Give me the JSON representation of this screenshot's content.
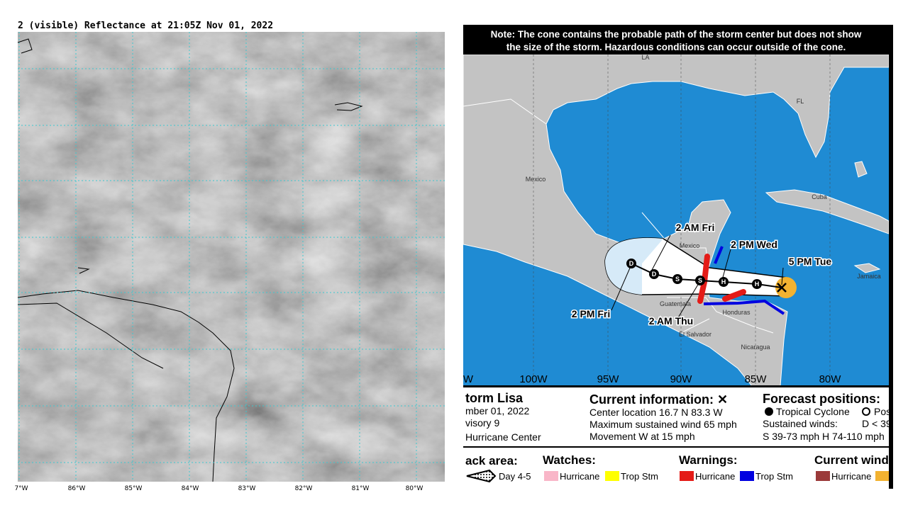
{
  "left_panel": {
    "title": "2 (visible) Reflectance at 21:05Z Nov 01, 2022",
    "lon_labels": [
      "7°W",
      "86°W",
      "85°W",
      "84°W",
      "83°W",
      "82°W",
      "81°W",
      "80°W"
    ]
  },
  "right_panel": {
    "note": [
      "Note: The cone contains the probable path of the storm center but does not show",
      "the size of the storm. Hazardous conditions can occur outside of the cone."
    ],
    "places": [
      "LA",
      "FL",
      "Mexico",
      "Cuba",
      "Jamaica",
      "Mexico",
      "Guatemala",
      "Honduras",
      "El Salvador",
      "Nicaragua"
    ],
    "forecast_labels": [
      "2 AM Fri",
      "2 PM Wed",
      "5 PM Tue",
      "2 PM Fri",
      "2 AM Thu"
    ],
    "track_letters": [
      "D",
      "D",
      "S",
      "S",
      "H",
      "H"
    ],
    "lon_labels": [
      "W",
      "100W",
      "95W",
      "90W",
      "85W",
      "80W"
    ],
    "storm": [
      "torm Lisa",
      "mber 01, 2022",
      "visory 9",
      "Hurricane Center"
    ],
    "current": {
      "heading": "Current information: ✕",
      "lines": [
        "Center location 16.7 N 83.3 W",
        "Maximum sustained wind 65 mph",
        "Movement W at 15 mph"
      ]
    },
    "forecast": {
      "heading": "Forecast positions:",
      "cyclone": "Tropical Cyclone",
      "pos": "Pos",
      "winds": "Sustained winds:",
      "d": "D < 39",
      "sh": "S 39-73 mph  H 74-110 mph"
    },
    "legend": {
      "track": "ack area:",
      "day": "Day 4-5",
      "watches": "Watches:",
      "watch_items": [
        "Hurricane",
        "Trop Stm"
      ],
      "warnings": "Warnings:",
      "warning_items": [
        "Hurricane",
        "Trop Stm"
      ],
      "current_wind": "Current wind",
      "current_items": [
        "Hurricane"
      ]
    }
  }
}
